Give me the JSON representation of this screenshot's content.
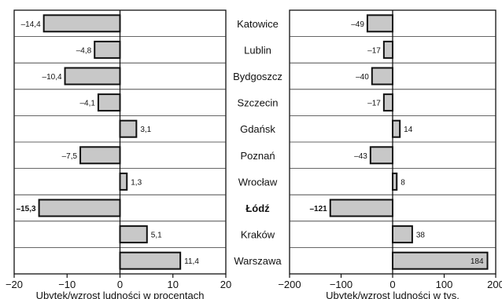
{
  "chart_data": [
    {
      "type": "bar",
      "orientation": "horizontal",
      "categories": [
        "Katowice",
        "Lublin",
        "Bydgoszcz",
        "Szczecin",
        "Gdańsk",
        "Poznań",
        "Wrocław",
        "Łódź",
        "Kraków",
        "Warszawa"
      ],
      "values": [
        -14.4,
        -4.8,
        -10.4,
        -4.1,
        3.1,
        -7.5,
        1.3,
        -15.3,
        5.1,
        11.4
      ],
      "data_labels": [
        "–14,4",
        "–4,8",
        "–10,4",
        "–4,1",
        "3,1",
        "–7,5",
        "1,3",
        "–15,3",
        "5,1",
        "11,4"
      ],
      "xlabel": "Ubytek/wzrost ludności w procentach",
      "xlim": [
        -20,
        20
      ],
      "xticks": [
        -20,
        -10,
        0,
        10,
        20
      ],
      "xtick_labels": [
        "−20",
        "−10",
        "0",
        "10",
        "20"
      ],
      "grid": "horizontal",
      "bar_color": "#c8c8c8"
    },
    {
      "type": "bar",
      "orientation": "horizontal",
      "categories": [
        "Katowice",
        "Lublin",
        "Bydgoszcz",
        "Szczecin",
        "Gdańsk",
        "Poznań",
        "Wrocław",
        "Łódź",
        "Kraków",
        "Warszawa"
      ],
      "values": [
        -49,
        -17,
        -40,
        -17,
        14,
        -43,
        8,
        -121,
        38,
        184
      ],
      "data_labels": [
        "–49",
        "–17",
        "–40",
        "–17",
        "14",
        "–43",
        "8",
        "–121",
        "38",
        "184"
      ],
      "xlabel": "Ubytek/wzrost ludności w tys.",
      "xlim": [
        -200,
        200
      ],
      "xticks": [
        -200,
        -100,
        0,
        100,
        200
      ],
      "xtick_labels": [
        "−200",
        "−100",
        "0",
        "100",
        "200"
      ],
      "grid": "horizontal",
      "bar_color": "#c8c8c8"
    }
  ],
  "highlight_category": "Łódź"
}
